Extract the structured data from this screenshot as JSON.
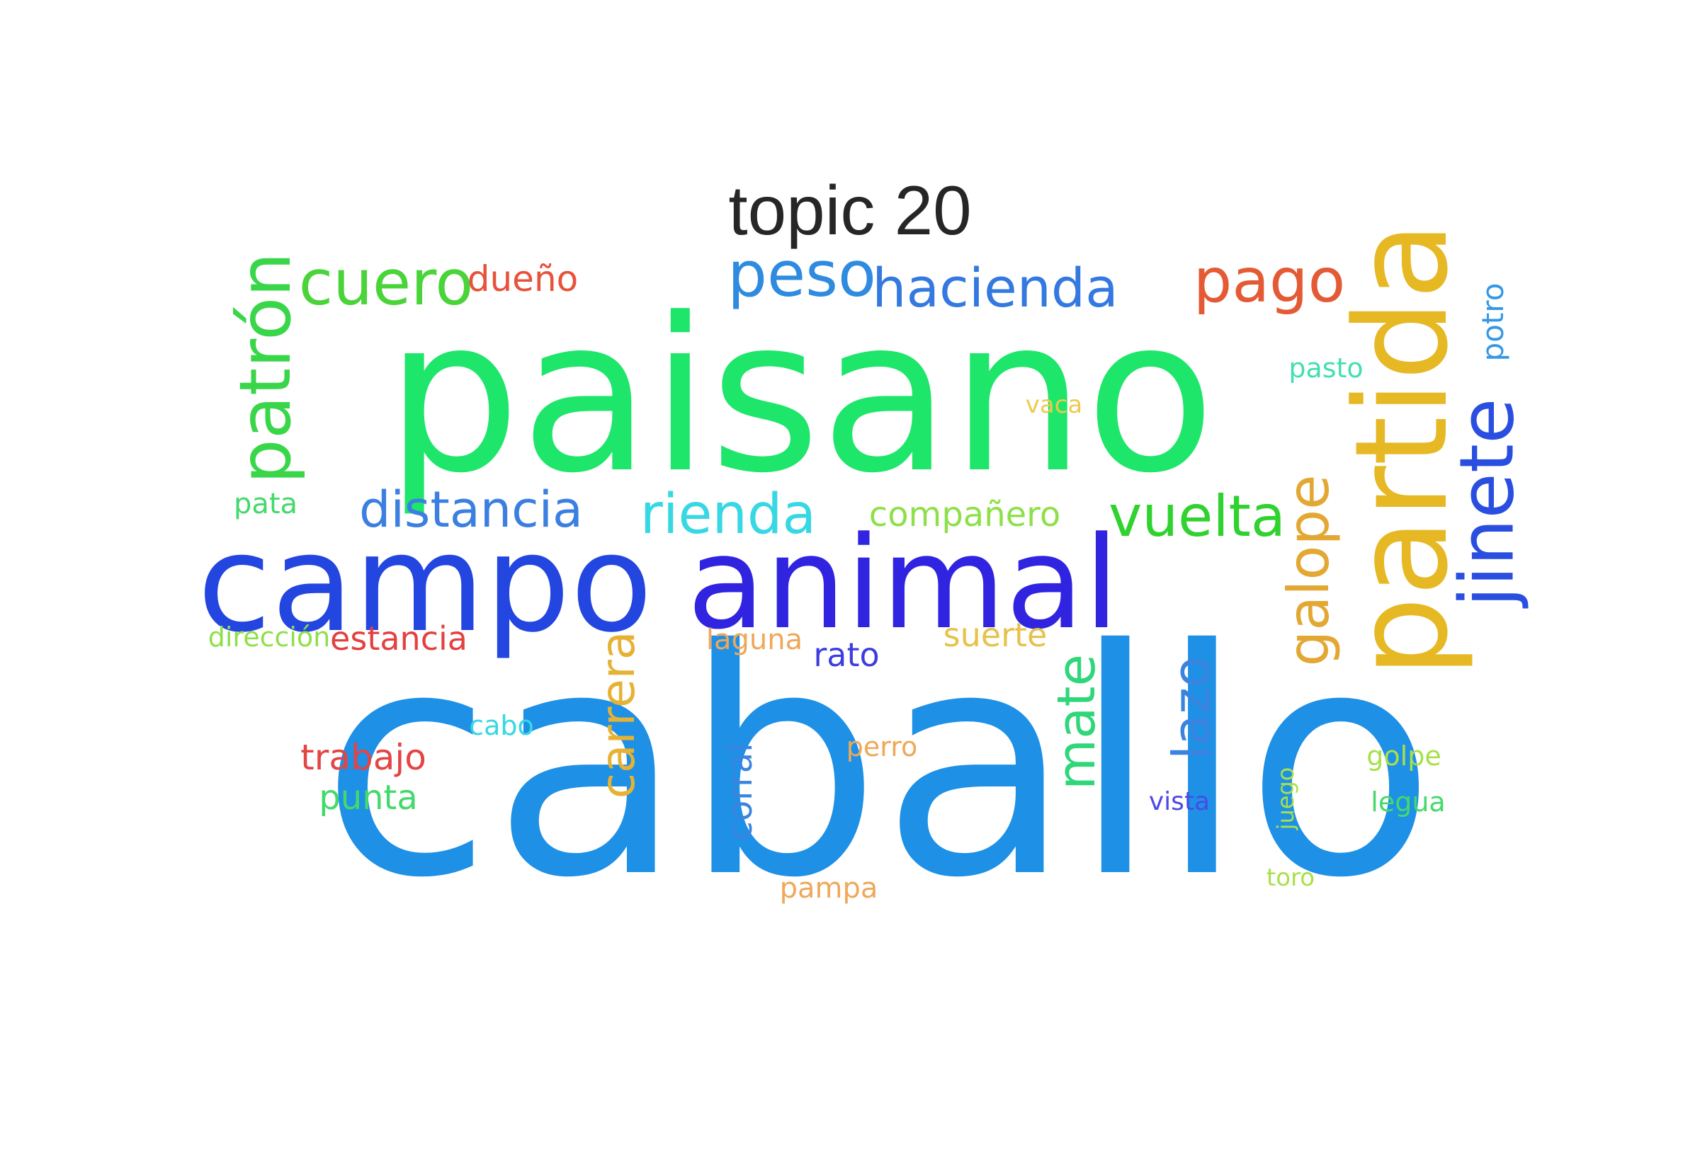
{
  "title": "topic 20",
  "words": [
    {
      "text": "caballo",
      "color": "#1e90e6",
      "rotate": false
    },
    {
      "text": "paisano",
      "color": "#1ee66a",
      "rotate": false
    },
    {
      "text": "campo",
      "color": "#2446e0",
      "rotate": false
    },
    {
      "text": "animal",
      "color": "#3124e0",
      "rotate": false
    },
    {
      "text": "partida",
      "color": "#e6b824",
      "rotate": true
    },
    {
      "text": "jinete",
      "color": "#2a4fe0",
      "rotate": true
    },
    {
      "text": "patrón",
      "color": "#3ad64a",
      "rotate": true
    },
    {
      "text": "cuero",
      "color": "#4bd43a",
      "rotate": false
    },
    {
      "text": "dueño",
      "color": "#e8513a",
      "rotate": false
    },
    {
      "text": "peso",
      "color": "#2f8be0",
      "rotate": false
    },
    {
      "text": "hacienda",
      "color": "#3479e0",
      "rotate": false
    },
    {
      "text": "pago",
      "color": "#e35a34",
      "rotate": false
    },
    {
      "text": "potro",
      "color": "#3598e6",
      "rotate": true
    },
    {
      "text": "pasto",
      "color": "#42dfb0",
      "rotate": false
    },
    {
      "text": "vaca",
      "color": "#efc94d",
      "rotate": false
    },
    {
      "text": "pata",
      "color": "#43d96b",
      "rotate": false
    },
    {
      "text": "distancia",
      "color": "#3b7fe0",
      "rotate": false
    },
    {
      "text": "rienda",
      "color": "#37d8e3",
      "rotate": false
    },
    {
      "text": "compañero",
      "color": "#8ee04a",
      "rotate": false
    },
    {
      "text": "vuelta",
      "color": "#2fd22f",
      "rotate": false
    },
    {
      "text": "galope",
      "color": "#e3a834",
      "rotate": true
    },
    {
      "text": "dirección",
      "color": "#8ee04a",
      "rotate": false
    },
    {
      "text": "estancia",
      "color": "#e34040",
      "rotate": false
    },
    {
      "text": "laguna",
      "color": "#efa85a",
      "rotate": false
    },
    {
      "text": "suerte",
      "color": "#e6c24a",
      "rotate": false
    },
    {
      "text": "rato",
      "color": "#3c3ce0",
      "rotate": false
    },
    {
      "text": "carrera",
      "color": "#e6b233",
      "rotate": true
    },
    {
      "text": "mate",
      "color": "#2fd67a",
      "rotate": true
    },
    {
      "text": "lazo",
      "color": "#3a84e0",
      "rotate": true
    },
    {
      "text": "cabo",
      "color": "#37d8e3",
      "rotate": false
    },
    {
      "text": "perro",
      "color": "#efa85a",
      "rotate": false
    },
    {
      "text": "trabajo",
      "color": "#e34444",
      "rotate": false
    },
    {
      "text": "punta",
      "color": "#43d96b",
      "rotate": false
    },
    {
      "text": "corral",
      "color": "#3a84e0",
      "rotate": true
    },
    {
      "text": "vista",
      "color": "#4a4ae6",
      "rotate": false
    },
    {
      "text": "juego",
      "color": "#a8e04a",
      "rotate": true
    },
    {
      "text": "golpe",
      "color": "#a8e04a",
      "rotate": false
    },
    {
      "text": "legua",
      "color": "#43d96b",
      "rotate": false
    },
    {
      "text": "toro",
      "color": "#a8e04a",
      "rotate": false
    },
    {
      "text": "pampa",
      "color": "#efa85a",
      "rotate": false
    }
  ]
}
